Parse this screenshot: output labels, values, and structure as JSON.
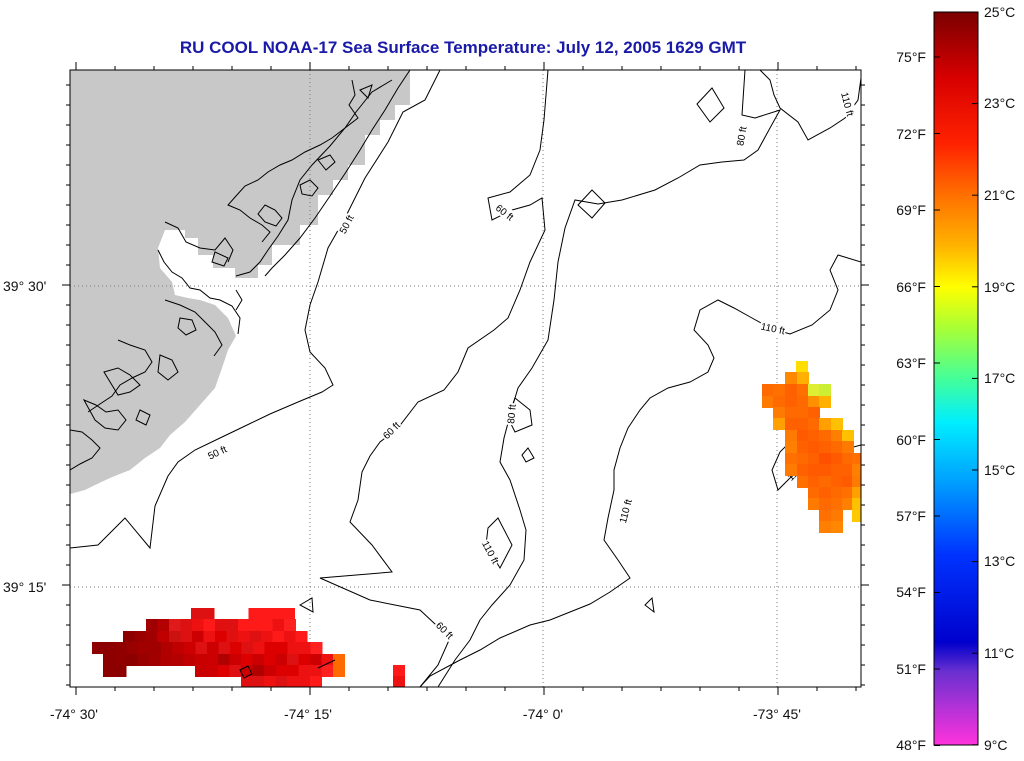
{
  "title": "RU COOL  NOAA-17  Sea Surface Temperature:  July 12, 2005 1629 GMT",
  "lon_ticks": [
    "-74° 30'",
    "-74° 15'",
    "-74° 0'",
    "-73° 45'"
  ],
  "lat_ticks": [
    "39° 30'",
    "39° 15'"
  ],
  "contour_labels": {
    "c50": "50 ft",
    "c60": "60 ft",
    "c80": "80 ft",
    "c110": "110 ft"
  },
  "colorbar": {
    "fahrenheit": [
      "75°F",
      "72°F",
      "69°F",
      "66°F",
      "63°F",
      "60°F",
      "57°F",
      "54°F",
      "51°F",
      "48°F"
    ],
    "celsius": [
      "25°C",
      "23°C",
      "21°C",
      "19°C",
      "17°C",
      "15°C",
      "13°C",
      "11°C",
      "9°C"
    ]
  },
  "colors": {
    "land": "#c8c8c8",
    "title": "#1a1aa8",
    "warm_orange": "#ff6a00",
    "hot_red": "#ee1111",
    "dark_red": "#9a0000"
  }
}
